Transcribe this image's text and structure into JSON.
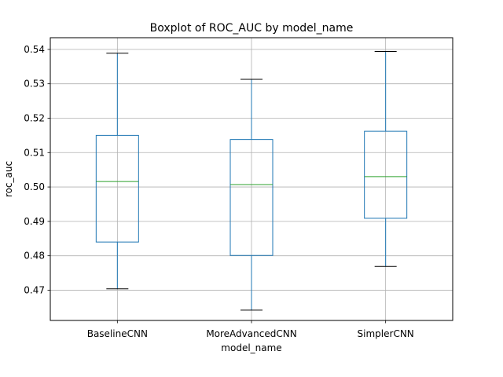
{
  "chart_data": {
    "type": "boxplot",
    "title": "Boxplot of ROC_AUC by model_name",
    "xlabel": "model_name",
    "ylabel": "roc_auc",
    "ylim": [
      0.4612,
      0.5434
    ],
    "yticks": [
      0.47,
      0.48,
      0.49,
      0.5,
      0.51,
      0.52,
      0.53,
      0.54
    ],
    "grid": true,
    "categories": [
      "BaselineCNN",
      "MoreAdvancedCNN",
      "SimplerCNN"
    ],
    "boxes": [
      {
        "category": "BaselineCNN",
        "whisker_low": 0.4704,
        "q1": 0.484,
        "median": 0.5016,
        "q3": 0.515,
        "whisker_high": 0.5389
      },
      {
        "category": "MoreAdvancedCNN",
        "whisker_low": 0.4642,
        "q1": 0.4801,
        "median": 0.5007,
        "q3": 0.5138,
        "whisker_high": 0.5313
      },
      {
        "category": "SimplerCNN",
        "whisker_low": 0.4769,
        "q1": 0.4909,
        "median": 0.503,
        "q3": 0.5162,
        "whisker_high": 0.5394
      }
    ],
    "colors": {
      "box": "#1f77b4",
      "median": "#2ca02c",
      "cap": "#000000",
      "grid": "#b0b0b0"
    }
  }
}
